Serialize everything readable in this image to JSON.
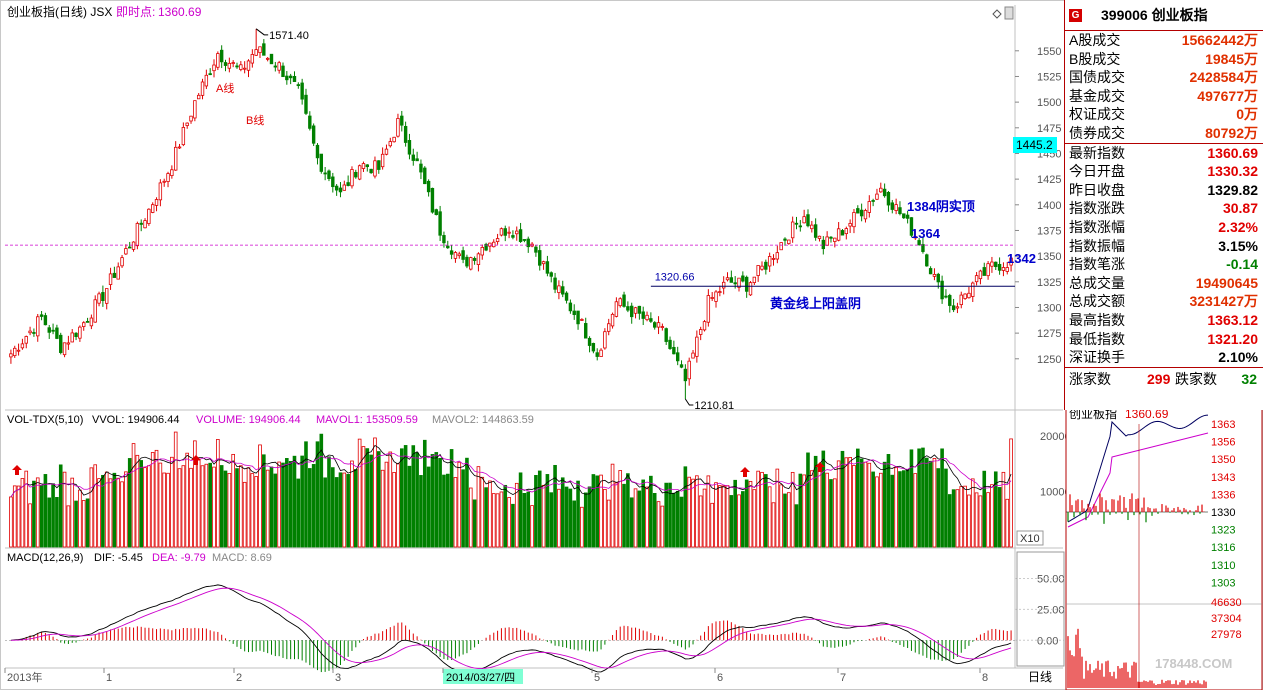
{
  "header": {
    "title": "创业板指(日线) JSX",
    "realtime_label": "即时点:",
    "realtime_value": "1360.69",
    "panel_icons": [
      "diamond-icon",
      "scroll-icon"
    ]
  },
  "main_chart": {
    "y_ticks": [
      1250,
      1275,
      1300,
      1325,
      1350,
      1375,
      1400,
      1425,
      1450,
      1475,
      1500,
      1525,
      1550
    ],
    "y_min": 1205,
    "y_max": 1580,
    "current_price_tag": "1445.2",
    "current_price_line": 1360.69,
    "high_label": "1571.40",
    "low_label": "1210.81",
    "support_label": "1320.66",
    "support_value": 1320.66,
    "annotations": {
      "a_line": "A线",
      "b_line": "B线",
      "top_1384": "1384阴实顶",
      "v1364": "1364",
      "v1342": "1342",
      "golden_line": "黄金线上阳盖阴"
    }
  },
  "chart_data": [
    {
      "type": "candlestick",
      "name": "main",
      "title": "创业板指(日线)",
      "ylim": [
        1205,
        1580
      ],
      "x_axis_labels": [
        "2013年",
        "1",
        "2",
        "3",
        "2014/03/27/四",
        "5",
        "6",
        "7",
        "8"
      ],
      "anchors": [
        [
          0,
          1255
        ],
        [
          8,
          1290
        ],
        [
          13,
          1262
        ],
        [
          18,
          1280
        ],
        [
          24,
          1312
        ],
        [
          30,
          1355
        ],
        [
          36,
          1395
        ],
        [
          42,
          1440
        ],
        [
          48,
          1500
        ],
        [
          54,
          1548
        ],
        [
          60,
          1530
        ],
        [
          64,
          1552
        ],
        [
          70,
          1535
        ],
        [
          75,
          1510
        ],
        [
          80,
          1445
        ],
        [
          86,
          1410
        ],
        [
          91,
          1440
        ],
        [
          96,
          1435
        ],
        [
          101,
          1480
        ],
        [
          106,
          1440
        ],
        [
          112,
          1375
        ],
        [
          118,
          1342
        ],
        [
          124,
          1362
        ],
        [
          130,
          1378
        ],
        [
          136,
          1362
        ],
        [
          142,
          1320
        ],
        [
          148,
          1290
        ],
        [
          153,
          1255
        ],
        [
          158,
          1305
        ],
        [
          164,
          1292
        ],
        [
          170,
          1276
        ],
        [
          176,
          1228
        ],
        [
          182,
          1305
        ],
        [
          187,
          1325
        ],
        [
          192,
          1322
        ],
        [
          197,
          1342
        ],
        [
          202,
          1368
        ],
        [
          207,
          1390
        ],
        [
          212,
          1360
        ],
        [
          217,
          1375
        ],
        [
          222,
          1395
        ],
        [
          227,
          1416
        ],
        [
          232,
          1392
        ],
        [
          237,
          1365
        ],
        [
          242,
          1320
        ],
        [
          246,
          1300
        ],
        [
          251,
          1322
        ],
        [
          256,
          1340
        ],
        [
          261,
          1345
        ]
      ]
    },
    {
      "type": "bar",
      "name": "volume",
      "title": "VOL-TDX(5,10)",
      "labels": {
        "vvol": "VVOL: 194906.44",
        "volume": "VOLUME: 194906.44",
        "mavol1": "MAVOL1: 153509.59",
        "mavol2": "MAVOL2: 144863.59"
      },
      "y_ticks": [
        10000,
        20000
      ],
      "unit_label": "X10",
      "ylim": [
        0,
        22000
      ]
    },
    {
      "type": "line",
      "name": "macd",
      "title": "MACD(12,26,9)",
      "labels": {
        "dif": "DIF: -5.45",
        "dea": "DEA: -9.79",
        "macd": "MACD: 8.69"
      },
      "y_ticks": [
        "50.00",
        "25.00",
        "0.00"
      ],
      "ylim": [
        -20,
        65
      ]
    },
    {
      "type": "line",
      "name": "intraday",
      "title": "创业板指",
      "value": "1360.69",
      "y_ticks": [
        "1363",
        "1356",
        "1350",
        "1343",
        "1336",
        "1330",
        "1323",
        "1316",
        "1310",
        "1303"
      ],
      "vol_ticks": [
        "46630",
        "37304",
        "27978"
      ]
    }
  ],
  "quote_panel": {
    "code": "399006",
    "name": "创业板指",
    "g_badge": "G",
    "turnover": [
      {
        "k": "A股成交",
        "v": "15662442万",
        "c": "org"
      },
      {
        "k": "B股成交",
        "v": "19845万",
        "c": "org"
      },
      {
        "k": "国债成交",
        "v": "2428584万",
        "c": "org"
      },
      {
        "k": "基金成交",
        "v": "497677万",
        "c": "org"
      },
      {
        "k": "权证成交",
        "v": "0万",
        "c": "org"
      },
      {
        "k": "债券成交",
        "v": "80792万",
        "c": "org"
      }
    ],
    "index": [
      {
        "k": "最新指数",
        "v": "1360.69",
        "c": "red"
      },
      {
        "k": "今日开盘",
        "v": "1330.32",
        "c": "red"
      },
      {
        "k": "昨日收盘",
        "v": "1329.82",
        "c": "black"
      },
      {
        "k": "指数涨跌",
        "v": "30.87",
        "c": "red"
      },
      {
        "k": "指数涨幅",
        "v": "2.32%",
        "c": "red"
      },
      {
        "k": "指数振幅",
        "v": "3.15%",
        "c": "black"
      },
      {
        "k": "指数笔涨",
        "v": "-0.14",
        "c": "green"
      },
      {
        "k": "总成交量",
        "v": "19490645",
        "c": "org"
      },
      {
        "k": "总成交额",
        "v": "3231427万",
        "c": "org"
      },
      {
        "k": "最高指数",
        "v": "1363.12",
        "c": "red"
      },
      {
        "k": "最低指数",
        "v": "1321.20",
        "c": "red"
      },
      {
        "k": "深证换手",
        "v": "2.10%",
        "c": "black"
      }
    ],
    "counts": {
      "up_label": "涨家数",
      "up": "299",
      "down_label": "跌家数",
      "down": "32"
    }
  },
  "footer": {
    "period": "日线",
    "watermark": "178448.COM"
  },
  "colors": {
    "up": "#e00000",
    "down": "#008000",
    "text_blue": "#0000cc",
    "magenta": "#cc00cc",
    "panel_border": "#b40000",
    "tag_bg": "#00ffff"
  }
}
